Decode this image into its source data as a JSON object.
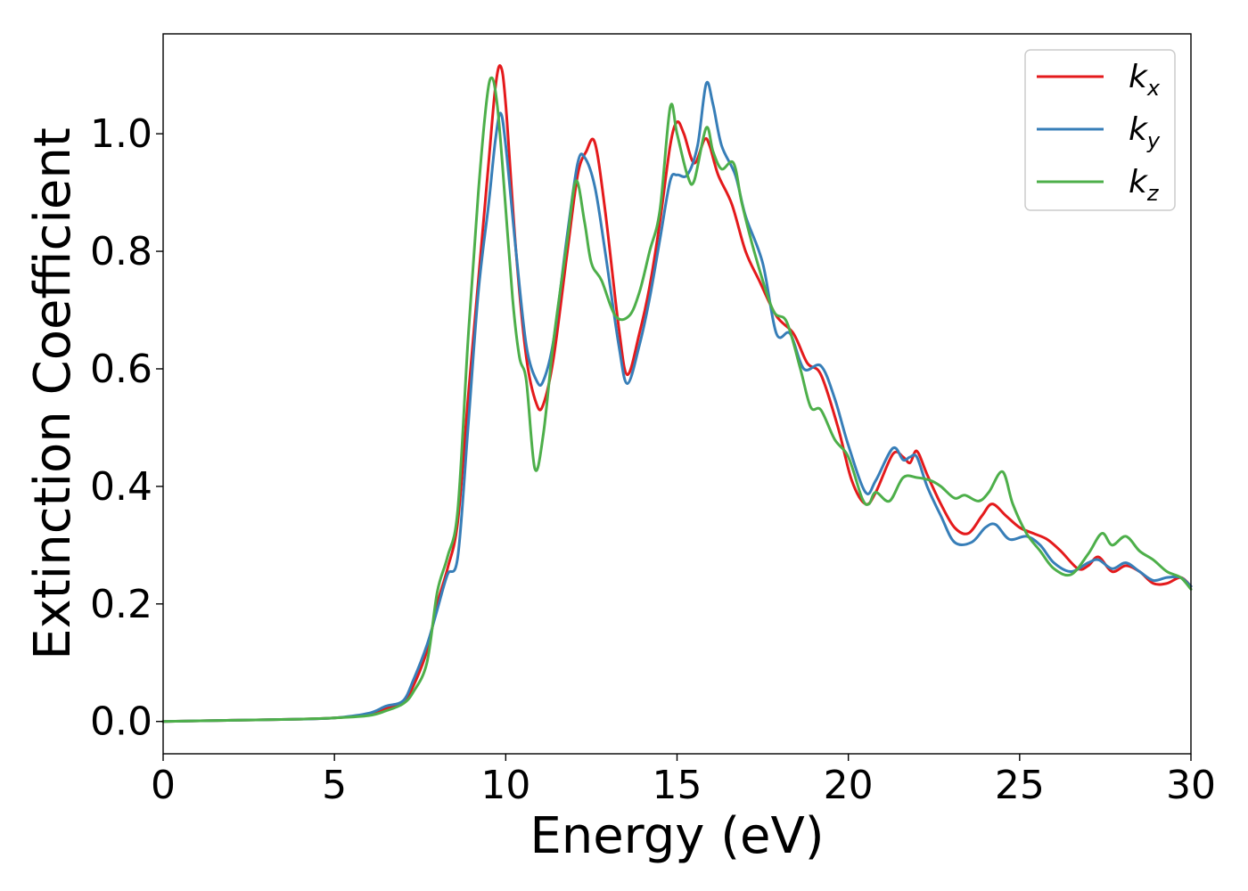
{
  "chart_data": {
    "type": "line",
    "title": "",
    "xlabel": "Energy (eV)",
    "ylabel": "Extinction Coefficient",
    "xlim": [
      0,
      30
    ],
    "ylim": [
      -0.055,
      1.17
    ],
    "xticks": [
      "0",
      "5",
      "10",
      "15",
      "20",
      "25",
      "30"
    ],
    "yticks": [
      "0.0",
      "0.2",
      "0.4",
      "0.6",
      "0.8",
      "1.0"
    ],
    "grid": false,
    "legend_position": "top-right",
    "series": [
      {
        "name": "k_x",
        "label_main": "k",
        "label_sub": "x",
        "color": "#e41a1c",
        "points": [
          [
            0,
            0
          ],
          [
            2,
            0.002
          ],
          [
            4,
            0.004
          ],
          [
            5,
            0.006
          ],
          [
            6,
            0.012
          ],
          [
            6.5,
            0.022
          ],
          [
            7,
            0.032
          ],
          [
            7.3,
            0.06
          ],
          [
            7.7,
            0.12
          ],
          [
            8,
            0.2
          ],
          [
            8.3,
            0.26
          ],
          [
            8.6,
            0.34
          ],
          [
            8.9,
            0.55
          ],
          [
            9.2,
            0.75
          ],
          [
            9.5,
            0.95
          ],
          [
            9.7,
            1.08
          ],
          [
            9.85,
            1.115
          ],
          [
            10,
            1.05
          ],
          [
            10.3,
            0.8
          ],
          [
            10.6,
            0.62
          ],
          [
            10.9,
            0.54
          ],
          [
            11.1,
            0.54
          ],
          [
            11.4,
            0.62
          ],
          [
            11.8,
            0.8
          ],
          [
            12.1,
            0.93
          ],
          [
            12.35,
            0.97
          ],
          [
            12.6,
            0.985
          ],
          [
            12.9,
            0.87
          ],
          [
            13.3,
            0.67
          ],
          [
            13.55,
            0.59
          ],
          [
            13.9,
            0.66
          ],
          [
            14.2,
            0.74
          ],
          [
            14.5,
            0.85
          ],
          [
            14.8,
            0.98
          ],
          [
            15,
            1.02
          ],
          [
            15.2,
            1.0
          ],
          [
            15.5,
            0.95
          ],
          [
            15.8,
            0.99
          ],
          [
            15.95,
            0.98
          ],
          [
            16.2,
            0.93
          ],
          [
            16.6,
            0.88
          ],
          [
            17,
            0.8
          ],
          [
            17.4,
            0.75
          ],
          [
            17.9,
            0.69
          ],
          [
            18.4,
            0.66
          ],
          [
            18.8,
            0.61
          ],
          [
            19.2,
            0.59
          ],
          [
            19.7,
            0.5
          ],
          [
            20.1,
            0.41
          ],
          [
            20.5,
            0.37
          ],
          [
            20.8,
            0.39
          ],
          [
            21.3,
            0.455
          ],
          [
            21.6,
            0.45
          ],
          [
            21.8,
            0.44
          ],
          [
            22,
            0.46
          ],
          [
            22.3,
            0.42
          ],
          [
            22.7,
            0.37
          ],
          [
            23.1,
            0.33
          ],
          [
            23.5,
            0.32
          ],
          [
            23.9,
            0.35
          ],
          [
            24.2,
            0.37
          ],
          [
            24.6,
            0.35
          ],
          [
            25,
            0.33
          ],
          [
            25.4,
            0.32
          ],
          [
            25.8,
            0.31
          ],
          [
            26.2,
            0.29
          ],
          [
            26.7,
            0.26
          ],
          [
            27,
            0.265
          ],
          [
            27.3,
            0.28
          ],
          [
            27.7,
            0.255
          ],
          [
            28.1,
            0.265
          ],
          [
            28.5,
            0.255
          ],
          [
            28.9,
            0.235
          ],
          [
            29.3,
            0.235
          ],
          [
            29.7,
            0.245
          ],
          [
            30,
            0.23
          ]
        ]
      },
      {
        "name": "k_y",
        "label_main": "k",
        "label_sub": "y",
        "color": "#377eb8",
        "points": [
          [
            0,
            0
          ],
          [
            2,
            0.002
          ],
          [
            4,
            0.004
          ],
          [
            5,
            0.006
          ],
          [
            6,
            0.014
          ],
          [
            6.5,
            0.026
          ],
          [
            7,
            0.035
          ],
          [
            7.3,
            0.07
          ],
          [
            7.7,
            0.13
          ],
          [
            8,
            0.19
          ],
          [
            8.3,
            0.25
          ],
          [
            8.6,
            0.28
          ],
          [
            8.9,
            0.5
          ],
          [
            9.2,
            0.73
          ],
          [
            9.5,
            0.88
          ],
          [
            9.7,
            0.99
          ],
          [
            9.85,
            1.035
          ],
          [
            10,
            0.98
          ],
          [
            10.3,
            0.8
          ],
          [
            10.6,
            0.64
          ],
          [
            10.9,
            0.58
          ],
          [
            11.1,
            0.58
          ],
          [
            11.4,
            0.65
          ],
          [
            11.8,
            0.83
          ],
          [
            12.1,
            0.95
          ],
          [
            12.3,
            0.96
          ],
          [
            12.6,
            0.91
          ],
          [
            12.9,
            0.8
          ],
          [
            13.3,
            0.64
          ],
          [
            13.55,
            0.575
          ],
          [
            13.9,
            0.64
          ],
          [
            14.2,
            0.72
          ],
          [
            14.5,
            0.82
          ],
          [
            14.8,
            0.92
          ],
          [
            15,
            0.93
          ],
          [
            15.3,
            0.93
          ],
          [
            15.6,
            0.98
          ],
          [
            15.85,
            1.085
          ],
          [
            16.05,
            1.05
          ],
          [
            16.3,
            0.98
          ],
          [
            16.7,
            0.93
          ],
          [
            17,
            0.86
          ],
          [
            17.5,
            0.78
          ],
          [
            17.9,
            0.66
          ],
          [
            18.3,
            0.66
          ],
          [
            18.7,
            0.6
          ],
          [
            19.2,
            0.605
          ],
          [
            19.6,
            0.55
          ],
          [
            20,
            0.47
          ],
          [
            20.5,
            0.39
          ],
          [
            20.8,
            0.41
          ],
          [
            21.3,
            0.465
          ],
          [
            21.6,
            0.445
          ],
          [
            21.8,
            0.45
          ],
          [
            22,
            0.45
          ],
          [
            22.3,
            0.4
          ],
          [
            22.7,
            0.35
          ],
          [
            23.1,
            0.305
          ],
          [
            23.6,
            0.305
          ],
          [
            24,
            0.33
          ],
          [
            24.3,
            0.335
          ],
          [
            24.7,
            0.31
          ],
          [
            25.2,
            0.315
          ],
          [
            25.6,
            0.3
          ],
          [
            26,
            0.27
          ],
          [
            26.5,
            0.255
          ],
          [
            27,
            0.27
          ],
          [
            27.3,
            0.275
          ],
          [
            27.7,
            0.26
          ],
          [
            28.1,
            0.27
          ],
          [
            28.5,
            0.255
          ],
          [
            28.9,
            0.24
          ],
          [
            29.3,
            0.245
          ],
          [
            29.7,
            0.245
          ],
          [
            30,
            0.23
          ]
        ]
      },
      {
        "name": "k_z",
        "label_main": "k",
        "label_sub": "z",
        "color": "#4daf4a",
        "points": [
          [
            0,
            0
          ],
          [
            2,
            0.002
          ],
          [
            4,
            0.004
          ],
          [
            5,
            0.006
          ],
          [
            6,
            0.01
          ],
          [
            6.5,
            0.018
          ],
          [
            7,
            0.03
          ],
          [
            7.3,
            0.05
          ],
          [
            7.7,
            0.1
          ],
          [
            8,
            0.22
          ],
          [
            8.3,
            0.28
          ],
          [
            8.6,
            0.36
          ],
          [
            8.9,
            0.65
          ],
          [
            9.2,
            0.9
          ],
          [
            9.45,
            1.06
          ],
          [
            9.6,
            1.095
          ],
          [
            9.75,
            1.05
          ],
          [
            9.9,
            0.95
          ],
          [
            10.2,
            0.72
          ],
          [
            10.4,
            0.62
          ],
          [
            10.6,
            0.58
          ],
          [
            10.85,
            0.43
          ],
          [
            11.1,
            0.49
          ],
          [
            11.4,
            0.65
          ],
          [
            11.8,
            0.82
          ],
          [
            12.05,
            0.92
          ],
          [
            12.3,
            0.85
          ],
          [
            12.5,
            0.78
          ],
          [
            12.8,
            0.75
          ],
          [
            13.2,
            0.69
          ],
          [
            13.6,
            0.69
          ],
          [
            13.9,
            0.73
          ],
          [
            14.2,
            0.8
          ],
          [
            14.5,
            0.87
          ],
          [
            14.8,
            1.045
          ],
          [
            15,
            1.0
          ],
          [
            15.3,
            0.93
          ],
          [
            15.5,
            0.92
          ],
          [
            15.85,
            1.01
          ],
          [
            16.05,
            0.97
          ],
          [
            16.3,
            0.94
          ],
          [
            16.65,
            0.95
          ],
          [
            16.9,
            0.88
          ],
          [
            17.3,
            0.79
          ],
          [
            17.8,
            0.7
          ],
          [
            18.2,
            0.68
          ],
          [
            18.6,
            0.6
          ],
          [
            18.9,
            0.535
          ],
          [
            19.2,
            0.53
          ],
          [
            19.6,
            0.48
          ],
          [
            20,
            0.45
          ],
          [
            20.4,
            0.38
          ],
          [
            20.6,
            0.37
          ],
          [
            20.8,
            0.39
          ],
          [
            21.2,
            0.375
          ],
          [
            21.6,
            0.415
          ],
          [
            22,
            0.415
          ],
          [
            22.4,
            0.41
          ],
          [
            22.7,
            0.4
          ],
          [
            23.1,
            0.38
          ],
          [
            23.4,
            0.385
          ],
          [
            23.8,
            0.375
          ],
          [
            24.1,
            0.39
          ],
          [
            24.5,
            0.425
          ],
          [
            24.8,
            0.37
          ],
          [
            25.2,
            0.32
          ],
          [
            25.6,
            0.29
          ],
          [
            26,
            0.26
          ],
          [
            26.5,
            0.25
          ],
          [
            27,
            0.285
          ],
          [
            27.4,
            0.32
          ],
          [
            27.7,
            0.3
          ],
          [
            28.1,
            0.315
          ],
          [
            28.5,
            0.29
          ],
          [
            28.9,
            0.275
          ],
          [
            29.3,
            0.255
          ],
          [
            29.7,
            0.245
          ],
          [
            30,
            0.225
          ]
        ]
      }
    ]
  }
}
